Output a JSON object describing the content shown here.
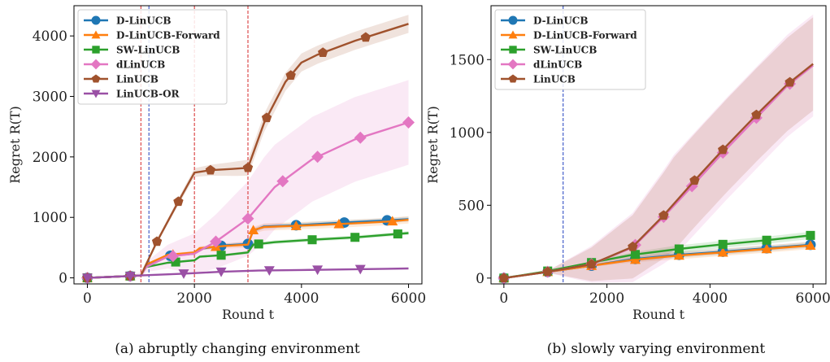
{
  "chart_data": [
    {
      "type": "line",
      "caption": "(a) abruptly changing environment",
      "xlabel": "Round t",
      "ylabel": "Regret R(T)",
      "xlim": [
        -250,
        6250
      ],
      "ylim": [
        -100,
        4500
      ],
      "xticks": [
        0,
        2000,
        4000,
        6000
      ],
      "yticks": [
        0,
        1000,
        2000,
        3000,
        4000
      ],
      "legend_position": "top-left",
      "vlines": [
        {
          "x": 1000,
          "color": "#d62728"
        },
        {
          "x": 1150,
          "color": "#1f3fbf"
        },
        {
          "x": 2000,
          "color": "#d62728"
        },
        {
          "x": 3000,
          "color": "#d62728"
        }
      ],
      "series": [
        {
          "name": "D-LinUCB",
          "color": "#1f77b4",
          "marker": "circle",
          "x": [
            0,
            800,
            1000,
            1100,
            1500,
            2000,
            2100,
            2600,
            3000,
            3100,
            3300,
            3900,
            4700,
            5600,
            6000
          ],
          "y": [
            0,
            30,
            40,
            200,
            360,
            400,
            480,
            540,
            560,
            780,
            850,
            870,
            910,
            950,
            970
          ],
          "markers_x": [
            0,
            800,
            1550,
            2500,
            3000,
            3900,
            4800,
            5600
          ],
          "band": 40
        },
        {
          "name": "D-LinUCB-Forward",
          "color": "#ff7f0e",
          "marker": "triangle",
          "x": [
            0,
            800,
            1000,
            1100,
            1500,
            2000,
            2100,
            2600,
            3000,
            3100,
            3300,
            3900,
            4700,
            5600,
            6000
          ],
          "y": [
            0,
            30,
            40,
            220,
            380,
            420,
            490,
            530,
            550,
            790,
            840,
            860,
            890,
            930,
            960
          ],
          "markers_x": [
            0,
            800,
            1600,
            2400,
            3100,
            3900,
            4700,
            5700
          ],
          "band": 60
        },
        {
          "name": "SW-LinUCB",
          "color": "#2ca02c",
          "marker": "square",
          "x": [
            0,
            800,
            1000,
            1100,
            1500,
            2000,
            2100,
            2600,
            3000,
            3100,
            3500,
            4200,
            5000,
            6000
          ],
          "y": [
            0,
            30,
            40,
            180,
            250,
            290,
            350,
            380,
            420,
            550,
            590,
            630,
            670,
            740
          ],
          "markers_x": [
            0,
            800,
            1650,
            2500,
            3200,
            4200,
            5000,
            5800
          ],
          "band": 30
        },
        {
          "name": "dLinUCB",
          "color": "#e377c2",
          "marker": "diamond",
          "x": [
            0,
            800,
            1000,
            1100,
            1500,
            2000,
            2400,
            3000,
            3500,
            4200,
            5000,
            6000
          ],
          "y": [
            0,
            30,
            40,
            180,
            350,
            400,
            600,
            980,
            1500,
            1960,
            2290,
            2570
          ],
          "markers_x": [
            0,
            800,
            1600,
            2400,
            3000,
            3650,
            4300,
            5100,
            6000
          ],
          "band": 700
        },
        {
          "name": "LinUCB",
          "color": "#a0522d",
          "marker": "pentagon",
          "x": [
            0,
            800,
            1000,
            1300,
            1700,
            2000,
            2300,
            2700,
            3000,
            3300,
            3700,
            4000,
            4300,
            5000,
            5500,
            6000
          ],
          "y": [
            0,
            30,
            40,
            600,
            1260,
            1740,
            1780,
            1800,
            1820,
            2560,
            3240,
            3560,
            3690,
            3920,
            4060,
            4200
          ],
          "markers_x": [
            0,
            800,
            1300,
            1700,
            2300,
            3000,
            3350,
            3800,
            4400,
            5200
          ],
          "band": 150
        },
        {
          "name": "LinUCB-OR",
          "color": "#9a50a5",
          "marker": "triangle-down",
          "x": [
            0,
            800,
            1000,
            1800,
            2500,
            3200,
            4000,
            4800,
            5600,
            6000
          ],
          "y": [
            0,
            30,
            40,
            70,
            100,
            120,
            130,
            140,
            150,
            155
          ],
          "markers_x": [
            0,
            800,
            1800,
            2500,
            3400,
            4300,
            5100
          ],
          "band": 0
        }
      ]
    },
    {
      "type": "line",
      "caption": "(b) slowly varying environment",
      "xlabel": "Round t",
      "ylabel": "Regret R(T)",
      "xlim": [
        -250,
        6250
      ],
      "ylim": [
        -40,
        1870
      ],
      "xticks": [
        0,
        2000,
        4000,
        6000
      ],
      "yticks": [
        0,
        500,
        1000,
        1500
      ],
      "legend_position": "top-left",
      "vlines": [
        {
          "x": 1150,
          "color": "#1f3fbf"
        }
      ],
      "series": [
        {
          "name": "D-LinUCB",
          "color": "#1f77b4",
          "marker": "circle",
          "x": [
            0,
            800,
            1600,
            2500,
            3400,
            4200,
            5100,
            6000
          ],
          "y": [
            0,
            40,
            80,
            130,
            160,
            180,
            205,
            230
          ],
          "markers_x": [
            0,
            850,
            1700,
            2550,
            3400,
            4250,
            5100,
            5950
          ],
          "band": 20
        },
        {
          "name": "D-LinUCB-Forward",
          "color": "#ff7f0e",
          "marker": "triangle",
          "x": [
            0,
            800,
            1600,
            2500,
            3400,
            4200,
            5100,
            6000
          ],
          "y": [
            0,
            40,
            80,
            125,
            155,
            175,
            200,
            225
          ],
          "markers_x": [
            0,
            850,
            1700,
            2550,
            3400,
            4250,
            5100,
            5950
          ],
          "band": 25
        },
        {
          "name": "SW-LinUCB",
          "color": "#2ca02c",
          "marker": "square",
          "x": [
            0,
            800,
            1600,
            2500,
            3400,
            4200,
            5100,
            6000
          ],
          "y": [
            0,
            45,
            100,
            160,
            200,
            230,
            260,
            295
          ],
          "markers_x": [
            0,
            850,
            1700,
            2550,
            3400,
            4250,
            5100,
            5950
          ],
          "band": 25
        },
        {
          "name": "dLinUCB",
          "color": "#e377c2",
          "marker": "diamond",
          "x": [
            0,
            800,
            1700,
            2500,
            3100,
            3700,
            4300,
            4900,
            5500,
            6000
          ],
          "y": [
            0,
            40,
            95,
            210,
            420,
            650,
            880,
            1100,
            1320,
            1460
          ],
          "markers_x": [
            0,
            850,
            1700,
            2550,
            3100,
            3650,
            4250,
            4900,
            5550
          ],
          "band": 350
        },
        {
          "name": "LinUCB",
          "color": "#a0522d",
          "marker": "pentagon",
          "x": [
            0,
            800,
            1700,
            2500,
            3100,
            3700,
            4300,
            4900,
            5500,
            6000
          ],
          "y": [
            0,
            40,
            95,
            215,
            430,
            670,
            900,
            1120,
            1330,
            1470
          ],
          "markers_x": [
            0,
            850,
            1700,
            2500,
            3100,
            3700,
            4250,
            4900,
            5550
          ],
          "band": 320
        }
      ]
    }
  ]
}
